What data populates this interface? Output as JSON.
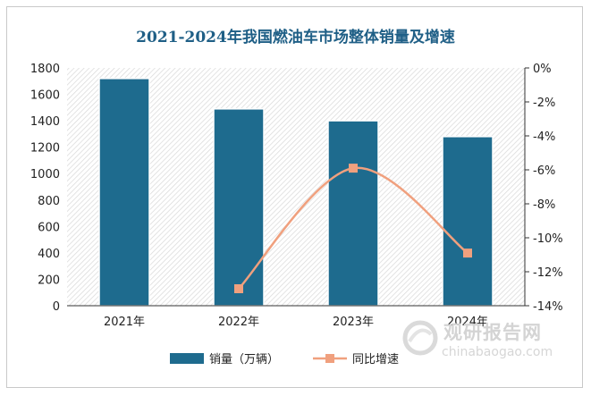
{
  "chart_data": {
    "type": "bar",
    "title": "2021-2024年我国燃油车市场整体销量及增速",
    "categories": [
      "2021年",
      "2022年",
      "2023年",
      "2024年"
    ],
    "series": [
      {
        "name": "销量（万辆）",
        "type": "bar",
        "axis": "left",
        "values": [
          1720,
          1490,
          1400,
          1280
        ],
        "color": "#1e6b8e"
      },
      {
        "name": "同比增速",
        "type": "line",
        "axis": "right",
        "values": [
          null,
          -13,
          -5.9,
          -10.9
        ],
        "color": "#f0a07e"
      }
    ],
    "y_left": {
      "min": 0,
      "max": 1800,
      "ticks": [
        "0",
        "200",
        "400",
        "600",
        "800",
        "1000",
        "1200",
        "1400",
        "1600",
        "1800"
      ]
    },
    "y_right": {
      "min": -14,
      "max": 0,
      "ticks": [
        "0%",
        "-2%",
        "-4%",
        "-6%",
        "-8%",
        "-10%",
        "-12%",
        "-14%"
      ]
    },
    "legend_position": "bottom",
    "plot_background": "hatched"
  },
  "watermark": {
    "brand": "观研报告网",
    "url": "chinabaogao.com"
  }
}
